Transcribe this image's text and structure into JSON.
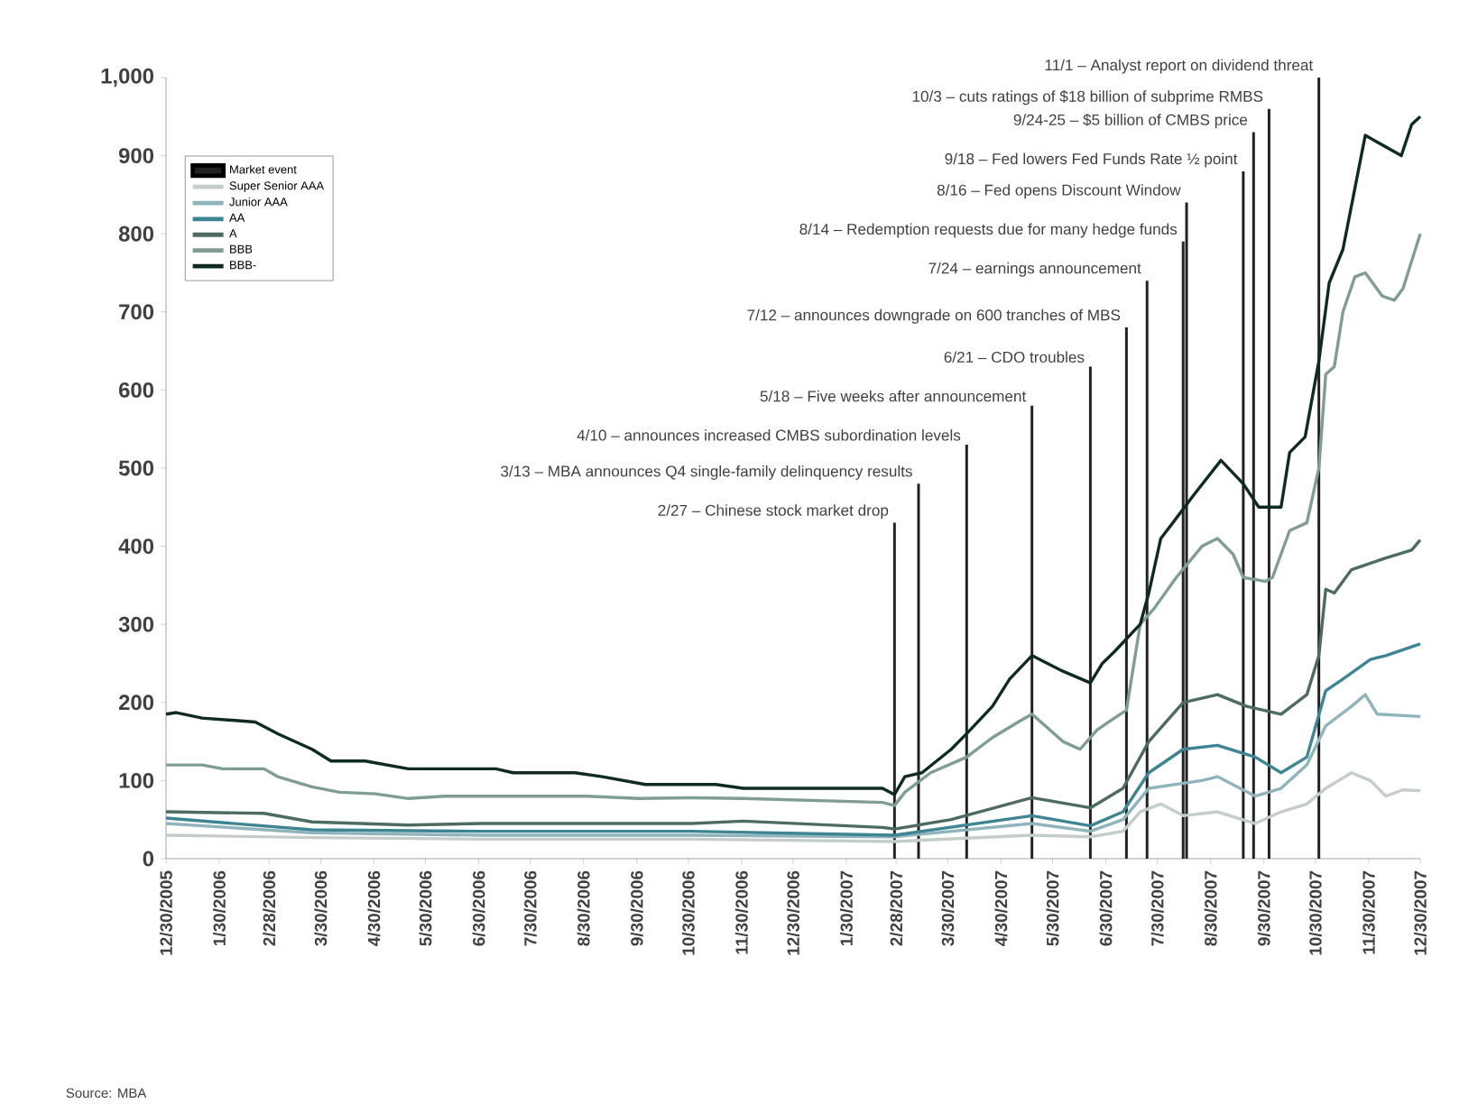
{
  "chart_data": {
    "type": "line",
    "xlim": [
      "2005-12-30",
      "2007-12-30"
    ],
    "ylim": [
      0,
      1000
    ],
    "xticks": [
      {
        "value": "2005-12-30",
        "label": "12/30/2005"
      },
      {
        "value": "2006-01-30",
        "label": "1/30/2006"
      },
      {
        "value": "2006-02-28",
        "label": "2/28/2006"
      },
      {
        "value": "2006-03-30",
        "label": "3/30/2006"
      },
      {
        "value": "2006-04-30",
        "label": "4/30/2006"
      },
      {
        "value": "2006-05-30",
        "label": "5/30/2006"
      },
      {
        "value": "2006-06-30",
        "label": "6/30/2006"
      },
      {
        "value": "2006-07-30",
        "label": "7/30/2006"
      },
      {
        "value": "2006-08-30",
        "label": "8/30/2006"
      },
      {
        "value": "2006-09-30",
        "label": "9/30/2006"
      },
      {
        "value": "2006-10-30",
        "label": "10/30/2006"
      },
      {
        "value": "2006-11-30",
        "label": "11/30/2006"
      },
      {
        "value": "2006-12-30",
        "label": "12/30/2006"
      },
      {
        "value": "2007-01-30",
        "label": "1/30/2007"
      },
      {
        "value": "2007-02-28",
        "label": "2/28/2007"
      },
      {
        "value": "2007-03-30",
        "label": "3/30/2007"
      },
      {
        "value": "2007-04-30",
        "label": "4/30/2007"
      },
      {
        "value": "2007-05-30",
        "label": "5/30/2007"
      },
      {
        "value": "2007-06-30",
        "label": "6/30/2007"
      },
      {
        "value": "2007-07-30",
        "label": "7/30/2007"
      },
      {
        "value": "2007-08-30",
        "label": "8/30/2007"
      },
      {
        "value": "2007-09-30",
        "label": "9/30/2007"
      },
      {
        "value": "2007-10-30",
        "label": "10/30/2007"
      },
      {
        "value": "2007-11-30",
        "label": "11/30/2007"
      },
      {
        "value": "2007-12-30",
        "label": "12/30/2007"
      }
    ],
    "yticks": [
      0,
      100,
      200,
      300,
      400,
      500,
      600,
      700,
      800,
      900,
      {
        "value": 1000,
        "label": "1,000"
      }
    ],
    "legend": "top left",
    "series": [
      {
        "name": "Market event",
        "type": "bar",
        "color": "#222222",
        "x": [
          "2007-02-27",
          "2007-03-13",
          "2007-04-10",
          "2007-05-18",
          "2007-06-21",
          "2007-07-12",
          "2007-07-24",
          "2007-08-14",
          "2007-08-16",
          "2007-09-18",
          "2007-09-24",
          "2007-10-03",
          "2007-11-01"
        ],
        "values": [
          430,
          480,
          530,
          580,
          630,
          680,
          740,
          790,
          840,
          880,
          930,
          960,
          1000
        ]
      },
      {
        "name": "Super Senior AAA",
        "color": "#c5cdcc",
        "x": [
          "2005-12-30",
          "2006-03-25",
          "2006-07-01",
          "2006-11-01",
          "2007-02-27",
          "2007-05-18",
          "2007-06-21",
          "2007-07-10",
          "2007-07-20",
          "2007-08-01",
          "2007-08-14",
          "2007-09-03",
          "2007-09-25",
          "2007-10-10",
          "2007-10-25",
          "2007-11-05",
          "2007-11-20",
          "2007-12-01",
          "2007-12-10",
          "2007-12-20",
          "2007-12-30"
        ],
        "values": [
          30,
          27,
          25,
          25,
          22,
          30,
          28,
          35,
          60,
          70,
          55,
          60,
          45,
          60,
          70,
          90,
          110,
          100,
          80,
          88,
          87
        ]
      },
      {
        "name": "Junior AAA",
        "color": "#8fb4bb",
        "x": [
          "2005-12-30",
          "2006-03-25",
          "2006-07-01",
          "2006-11-01",
          "2007-02-27",
          "2007-05-18",
          "2007-06-21",
          "2007-07-10",
          "2007-07-25",
          "2007-08-25",
          "2007-09-03",
          "2007-09-25",
          "2007-10-10",
          "2007-10-25",
          "2007-11-05",
          "2007-11-20",
          "2007-11-28",
          "2007-12-05",
          "2007-12-30"
        ],
        "values": [
          45,
          33,
          30,
          30,
          28,
          45,
          35,
          50,
          90,
          100,
          105,
          80,
          90,
          120,
          170,
          195,
          210,
          185,
          182
        ]
      },
      {
        "name": "AA",
        "color": "#3d8593",
        "x": [
          "2005-12-30",
          "2006-03-25",
          "2006-07-01",
          "2006-11-01",
          "2007-02-27",
          "2007-05-18",
          "2007-06-21",
          "2007-07-10",
          "2007-07-25",
          "2007-08-14",
          "2007-09-03",
          "2007-09-25",
          "2007-10-10",
          "2007-10-25",
          "2007-11-05",
          "2007-11-15",
          "2007-12-01",
          "2007-12-10",
          "2007-12-30"
        ],
        "values": [
          52,
          37,
          35,
          35,
          30,
          55,
          42,
          60,
          110,
          140,
          145,
          130,
          110,
          130,
          215,
          230,
          255,
          260,
          275
        ]
      },
      {
        "name": "A",
        "color": "#4d6b5f",
        "x": [
          "2005-12-30",
          "2006-02-25",
          "2006-03-25",
          "2006-05-20",
          "2006-07-01",
          "2006-11-01",
          "2006-12-01",
          "2007-02-20",
          "2007-02-27",
          "2007-04-01",
          "2007-05-18",
          "2007-06-21",
          "2007-07-10",
          "2007-07-25",
          "2007-08-14",
          "2007-09-03",
          "2007-09-20",
          "2007-10-10",
          "2007-10-25",
          "2007-11-01",
          "2007-11-05",
          "2007-11-10",
          "2007-11-20",
          "2007-12-10",
          "2007-12-25",
          "2007-12-30"
        ],
        "values": [
          60,
          58,
          47,
          43,
          45,
          45,
          48,
          40,
          38,
          50,
          78,
          65,
          90,
          150,
          200,
          210,
          195,
          185,
          210,
          260,
          345,
          340,
          370,
          385,
          395,
          408
        ]
      },
      {
        "name": "BBB",
        "color": "#7f9e90",
        "x": [
          "2005-12-30",
          "2006-01-20",
          "2006-02-01",
          "2006-02-25",
          "2006-03-05",
          "2006-03-25",
          "2006-04-10",
          "2006-05-01",
          "2006-05-20",
          "2006-06-10",
          "2006-09-01",
          "2006-10-01",
          "2006-11-01",
          "2006-12-01",
          "2007-02-20",
          "2007-02-27",
          "2007-03-05",
          "2007-03-20",
          "2007-04-10",
          "2007-04-25",
          "2007-05-10",
          "2007-05-18",
          "2007-06-05",
          "2007-06-15",
          "2007-06-25",
          "2007-07-05",
          "2007-07-12",
          "2007-07-20",
          "2007-07-28",
          "2007-08-10",
          "2007-08-25",
          "2007-09-03",
          "2007-09-12",
          "2007-09-18",
          "2007-10-01",
          "2007-10-05",
          "2007-10-15",
          "2007-10-25",
          "2007-11-01",
          "2007-11-05",
          "2007-11-10",
          "2007-11-15",
          "2007-11-22",
          "2007-11-28",
          "2007-12-08",
          "2007-12-15",
          "2007-12-20",
          "2007-12-30"
        ],
        "values": [
          120,
          120,
          115,
          115,
          105,
          92,
          85,
          83,
          77,
          80,
          80,
          77,
          78,
          77,
          72,
          68,
          85,
          110,
          130,
          155,
          175,
          185,
          150,
          140,
          165,
          180,
          190,
          300,
          320,
          360,
          400,
          410,
          390,
          360,
          355,
          360,
          420,
          430,
          500,
          620,
          630,
          700,
          745,
          750,
          720,
          715,
          730,
          800
        ]
      },
      {
        "name": "BBB-",
        "color": "#0f2b20",
        "x": [
          "2005-12-30",
          "2006-01-05",
          "2006-01-20",
          "2006-02-20",
          "2006-03-05",
          "2006-03-25",
          "2006-04-05",
          "2006-04-25",
          "2006-05-20",
          "2006-07-10",
          "2006-07-20",
          "2006-08-25",
          "2006-09-10",
          "2006-10-05",
          "2006-11-15",
          "2006-12-01",
          "2007-02-20",
          "2007-02-27",
          "2007-03-05",
          "2007-03-15",
          "2007-04-01",
          "2007-04-10",
          "2007-04-25",
          "2007-05-05",
          "2007-05-18",
          "2007-06-05",
          "2007-06-21",
          "2007-06-28",
          "2007-07-05",
          "2007-07-20",
          "2007-07-25",
          "2007-08-01",
          "2007-08-08",
          "2007-08-20",
          "2007-09-05",
          "2007-09-18",
          "2007-09-27",
          "2007-10-10",
          "2007-10-15",
          "2007-10-24",
          "2007-11-01",
          "2007-11-07",
          "2007-11-15",
          "2007-11-28",
          "2007-12-19",
          "2007-12-25",
          "2007-12-30"
        ],
        "values": [
          185,
          187,
          180,
          175,
          160,
          140,
          125,
          125,
          115,
          115,
          110,
          110,
          105,
          95,
          95,
          90,
          90,
          82,
          105,
          110,
          140,
          160,
          195,
          230,
          260,
          240,
          225,
          250,
          265,
          300,
          340,
          410,
          430,
          465,
          510,
          480,
          450,
          450,
          520,
          540,
          637,
          737,
          780,
          926,
          900,
          940,
          950
        ]
      }
    ],
    "annotations": [
      {
        "text": "2/27 – Chinese stock market drop",
        "x": "2007-02-27",
        "y": 430
      },
      {
        "text": "3/13 – MBA announces Q4 single-family delinquency results",
        "x": "2007-03-13",
        "y": 480
      },
      {
        "text": "4/10 – announces increased CMBS subordination levels",
        "x": "2007-04-10",
        "y": 530
      },
      {
        "text": "5/18 – Five weeks after announcement",
        "x": "2007-05-18",
        "y": 580
      },
      {
        "text": "6/21 – CDO troubles",
        "x": "2007-06-21",
        "y": 630
      },
      {
        "text": "7/12 – announces downgrade on 600 tranches of MBS",
        "x": "2007-07-12",
        "y": 680
      },
      {
        "text": "7/24 – earnings announcement",
        "x": "2007-07-24",
        "y": 740
      },
      {
        "text": "8/14 – Redemption requests due for many hedge funds",
        "x": "2007-08-14",
        "y": 790
      },
      {
        "text": "8/16 – Fed opens Discount Window",
        "x": "2007-08-16",
        "y": 840
      },
      {
        "text": "9/18 – Fed lowers Fed Funds Rate ½ point",
        "x": "2007-09-18",
        "y": 880
      },
      {
        "text": "9/24-25 – $5 billion of CMBS price",
        "x": "2007-09-24",
        "y": 930
      },
      {
        "text": "10/3 – cuts ratings of $18 billion of subprime RMBS",
        "x": "2007-10-03",
        "y": 960
      },
      {
        "text": "11/1 – Analyst report on dividend threat",
        "x": "2007-11-01",
        "y": 1000
      },
      "Source: MBA"
    ]
  }
}
